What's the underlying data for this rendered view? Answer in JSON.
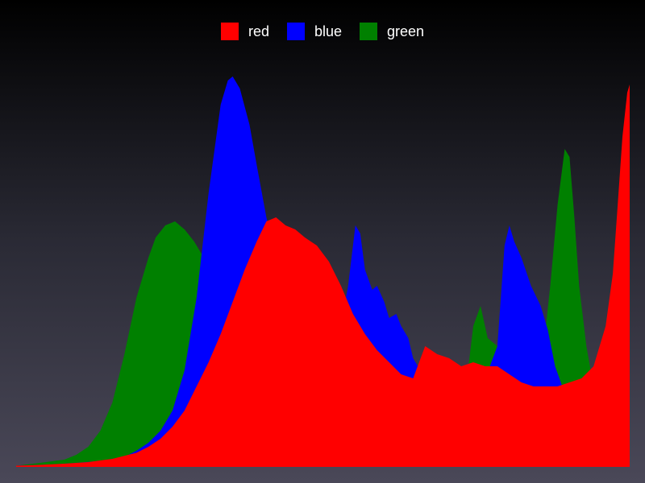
{
  "chart_data": {
    "type": "area",
    "title": "",
    "xlabel": "",
    "ylabel": "",
    "grid": false,
    "legend_position": "top-center",
    "xlim": [
      0,
      255
    ],
    "ylim": [
      0,
      100
    ],
    "series": [
      {
        "name": "green",
        "color": "#008000",
        "points": [
          [
            0,
            0.3
          ],
          [
            10,
            1
          ],
          [
            20,
            1.8
          ],
          [
            25,
            3
          ],
          [
            30,
            5
          ],
          [
            35,
            9
          ],
          [
            40,
            16
          ],
          [
            45,
            28
          ],
          [
            50,
            42
          ],
          [
            55,
            52
          ],
          [
            58,
            57
          ],
          [
            62,
            60
          ],
          [
            66,
            61
          ],
          [
            70,
            59
          ],
          [
            74,
            56
          ],
          [
            78,
            52
          ],
          [
            82,
            42
          ],
          [
            86,
            30
          ],
          [
            90,
            20
          ],
          [
            95,
            12
          ],
          [
            100,
            8
          ],
          [
            105,
            6
          ],
          [
            110,
            5
          ],
          [
            115,
            4
          ],
          [
            120,
            3.5
          ],
          [
            125,
            3
          ],
          [
            130,
            2.5
          ],
          [
            135,
            2.5
          ],
          [
            140,
            2
          ],
          [
            145,
            2
          ],
          [
            150,
            2.5
          ],
          [
            155,
            3
          ],
          [
            160,
            3.5
          ],
          [
            165,
            5
          ],
          [
            170,
            6.5
          ],
          [
            175,
            7.5
          ],
          [
            180,
            6
          ],
          [
            185,
            10
          ],
          [
            190,
            35
          ],
          [
            193,
            40
          ],
          [
            196,
            32
          ],
          [
            200,
            30
          ],
          [
            205,
            36
          ],
          [
            210,
            30
          ],
          [
            215,
            28
          ],
          [
            218,
            27
          ],
          [
            220,
            34
          ],
          [
            222,
            45
          ],
          [
            225,
            65
          ],
          [
            228,
            79
          ],
          [
            230,
            77
          ],
          [
            232,
            62
          ],
          [
            234,
            45
          ],
          [
            237,
            30
          ],
          [
            240,
            20
          ],
          [
            245,
            12
          ],
          [
            250,
            5
          ],
          [
            255,
            1
          ]
        ]
      },
      {
        "name": "blue",
        "color": "#0000ff",
        "points": [
          [
            0,
            0.3
          ],
          [
            15,
            0.6
          ],
          [
            25,
            1
          ],
          [
            35,
            1.5
          ],
          [
            45,
            2.5
          ],
          [
            50,
            4
          ],
          [
            55,
            6
          ],
          [
            60,
            9
          ],
          [
            65,
            14
          ],
          [
            70,
            24
          ],
          [
            75,
            42
          ],
          [
            80,
            68
          ],
          [
            85,
            90
          ],
          [
            88,
            96
          ],
          [
            90,
            97
          ],
          [
            93,
            94
          ],
          [
            97,
            85
          ],
          [
            100,
            75
          ],
          [
            104,
            62
          ],
          [
            108,
            52
          ],
          [
            112,
            44
          ],
          [
            116,
            38
          ],
          [
            120,
            35
          ],
          [
            125,
            30
          ],
          [
            130,
            26
          ],
          [
            134,
            32
          ],
          [
            138,
            45
          ],
          [
            141,
            60
          ],
          [
            143,
            58
          ],
          [
            145,
            49
          ],
          [
            148,
            44
          ],
          [
            150,
            45
          ],
          [
            153,
            41
          ],
          [
            155,
            37
          ],
          [
            158,
            38
          ],
          [
            160,
            35
          ],
          [
            163,
            32
          ],
          [
            165,
            27
          ],
          [
            170,
            22
          ],
          [
            175,
            20
          ],
          [
            180,
            19
          ],
          [
            185,
            18
          ],
          [
            190,
            20
          ],
          [
            195,
            22
          ],
          [
            200,
            30
          ],
          [
            203,
            55
          ],
          [
            205,
            60
          ],
          [
            207,
            56
          ],
          [
            210,
            52
          ],
          [
            214,
            45
          ],
          [
            218,
            40
          ],
          [
            221,
            34
          ],
          [
            224,
            25
          ],
          [
            227,
            20
          ],
          [
            230,
            16
          ],
          [
            235,
            14
          ],
          [
            240,
            14
          ],
          [
            245,
            14
          ],
          [
            250,
            14
          ],
          [
            255,
            14
          ]
        ]
      },
      {
        "name": "red",
        "color": "#ff0000",
        "points": [
          [
            0,
            0.3
          ],
          [
            10,
            0.5
          ],
          [
            20,
            0.8
          ],
          [
            30,
            1.2
          ],
          [
            40,
            2
          ],
          [
            50,
            3.5
          ],
          [
            55,
            5
          ],
          [
            60,
            7
          ],
          [
            65,
            10
          ],
          [
            70,
            14
          ],
          [
            75,
            20
          ],
          [
            80,
            26
          ],
          [
            85,
            33
          ],
          [
            90,
            41
          ],
          [
            95,
            49
          ],
          [
            100,
            56
          ],
          [
            104,
            61
          ],
          [
            108,
            62
          ],
          [
            112,
            60
          ],
          [
            116,
            59
          ],
          [
            120,
            57
          ],
          [
            125,
            55
          ],
          [
            130,
            51
          ],
          [
            135,
            45
          ],
          [
            140,
            38
          ],
          [
            145,
            33
          ],
          [
            150,
            29
          ],
          [
            155,
            26
          ],
          [
            160,
            23
          ],
          [
            165,
            22
          ],
          [
            170,
            30
          ],
          [
            175,
            28
          ],
          [
            180,
            27
          ],
          [
            185,
            25
          ],
          [
            190,
            26
          ],
          [
            195,
            25
          ],
          [
            200,
            25
          ],
          [
            205,
            23
          ],
          [
            210,
            21
          ],
          [
            215,
            20
          ],
          [
            220,
            20
          ],
          [
            225,
            20
          ],
          [
            230,
            21
          ],
          [
            235,
            22
          ],
          [
            240,
            25
          ],
          [
            245,
            35
          ],
          [
            248,
            48
          ],
          [
            250,
            65
          ],
          [
            252,
            82
          ],
          [
            254,
            93
          ],
          [
            255,
            95
          ]
        ]
      }
    ]
  }
}
